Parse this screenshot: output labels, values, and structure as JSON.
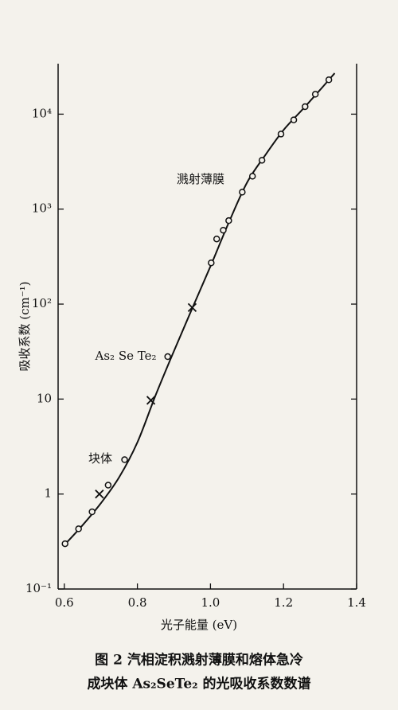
{
  "chart_data": {
    "type": "scatter",
    "x_label": "光子能量 (eV)",
    "y_label": "吸收系数 (cm⁻¹)",
    "caption": [
      "图 2  汽相淀积溅射薄膜和熔体急冷",
      "成块体 As₂SeTe₂ 的光吸收系数数谱"
    ],
    "annotations": [
      "溅射薄膜",
      "As₂ Se Te₂",
      "块体"
    ],
    "ylog": true,
    "xlim": [
      0.583,
      1.4
    ],
    "ylim": [
      0.1,
      34000
    ],
    "xticks": [
      0.6,
      0.8,
      {
        "value": 1.0,
        "label": "1.0"
      },
      1.2,
      1.4
    ],
    "yticks": [
      {
        "value": 0.1,
        "label": "10⁻¹"
      },
      1,
      10,
      {
        "value": 100,
        "label": "10²"
      },
      {
        "value": 1000,
        "label": "10³"
      },
      {
        "value": 10000,
        "label": "10⁴"
      }
    ],
    "color": "#111111",
    "series": [
      {
        "marker": "circle",
        "x": [
          0.602,
          0.639,
          0.676,
          0.72,
          0.765,
          0.883,
          1.002,
          1.017,
          1.035,
          1.05,
          1.087,
          1.115,
          1.141,
          1.193,
          1.228,
          1.259,
          1.287,
          1.324
        ],
        "values": [
          0.3,
          0.43,
          0.65,
          1.24,
          2.3,
          28,
          272,
          485,
          600,
          757,
          1510,
          2220,
          3270,
          6170,
          8700,
          12000,
          16200,
          23000
        ]
      },
      {
        "marker": "x",
        "x": [
          0.696,
          0.837,
          0.95
        ],
        "values": [
          1.0,
          9.7,
          92
        ]
      },
      {
        "marker": "line",
        "x": [
          0.6,
          0.65,
          0.7,
          0.75,
          0.8,
          0.85,
          0.9,
          0.95,
          1.0,
          1.05,
          1.1,
          1.15,
          1.2,
          1.25,
          1.3,
          1.34
        ],
        "values": [
          0.29,
          0.47,
          0.8,
          1.5,
          3.5,
          11,
          32,
          90,
          250,
          720,
          1900,
          3700,
          6800,
          11000,
          18000,
          27000
        ]
      }
    ]
  }
}
